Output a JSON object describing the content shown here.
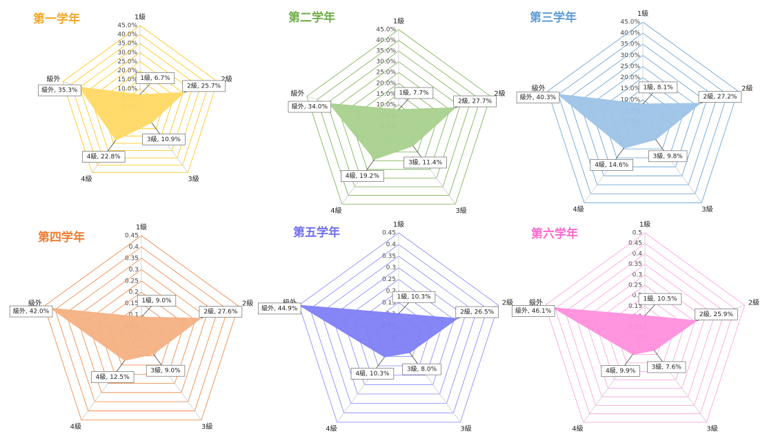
{
  "chart_data": [
    {
      "type": "radar",
      "title": "第一学年",
      "title_color": "#f5a623",
      "color": "#ffc000",
      "fill_color": "#ffd966",
      "categories": [
        "1級",
        "2級",
        "3級",
        "4級",
        "級外"
      ],
      "values": [
        6.7,
        25.7,
        10.9,
        22.8,
        35.3
      ],
      "value_labels": [
        "1級, 6.7%",
        "2級, 25.7%",
        "3級, 10.9%",
        "4級, 22.8%",
        "級外, 35.3%"
      ],
      "rlim": [
        0,
        45
      ],
      "rticks": [
        {
          "value": 0,
          "label": "0.0%"
        },
        {
          "value": 5,
          "label": "5.0%"
        },
        {
          "value": 10,
          "label": "10.0%"
        },
        {
          "value": 15,
          "label": "15.0%"
        },
        {
          "value": 20,
          "label": "20.0%"
        },
        {
          "value": 25,
          "label": "25.0%"
        },
        {
          "value": 30,
          "label": "30.0%"
        },
        {
          "value": 35,
          "label": "35.0%"
        },
        {
          "value": 40,
          "label": "40.0%"
        },
        {
          "value": 45,
          "label": "45.0%"
        }
      ]
    },
    {
      "type": "radar",
      "title": "第二学年",
      "title_color": "#70ad47",
      "color": "#70ad47",
      "fill_color": "#a9d18e",
      "categories": [
        "1級",
        "2級",
        "3級",
        "4級",
        "級外"
      ],
      "values": [
        7.7,
        27.7,
        11.4,
        19.2,
        34.0
      ],
      "value_labels": [
        "1級, 7.7%",
        "2級, 27.7%",
        "3級, 11.4%",
        "4級, 19.2%",
        "級外, 34.0%"
      ],
      "rlim": [
        0,
        45
      ],
      "rticks": [
        {
          "value": 0,
          "label": "0.0%"
        },
        {
          "value": 5,
          "label": "5.0%"
        },
        {
          "value": 10,
          "label": "10.0%"
        },
        {
          "value": 15,
          "label": "15.0%"
        },
        {
          "value": 20,
          "label": "20.0%"
        },
        {
          "value": 25,
          "label": "25.0%"
        },
        {
          "value": 30,
          "label": "30.0%"
        },
        {
          "value": 35,
          "label": "35.0%"
        },
        {
          "value": 40,
          "label": "40.0%"
        },
        {
          "value": 45,
          "label": "45.0%"
        }
      ]
    },
    {
      "type": "radar",
      "title": "第三学年",
      "title_color": "#5b9bd5",
      "color": "#5b9bd5",
      "fill_color": "#9dc3e6",
      "categories": [
        "1級",
        "2級",
        "3級",
        "4級",
        "級外"
      ],
      "values": [
        8.1,
        27.2,
        9.8,
        14.6,
        40.3
      ],
      "value_labels": [
        "1級, 8.1%",
        "2級, 27.2%",
        "3級, 9.8%",
        "4級, 14.6%",
        "級外, 40.3%"
      ],
      "rlim": [
        0,
        45
      ],
      "rticks": [
        {
          "value": 0,
          "label": "0.0%"
        },
        {
          "value": 5,
          "label": "5.0%"
        },
        {
          "value": 10,
          "label": "10.0%"
        },
        {
          "value": 15,
          "label": "15.0%"
        },
        {
          "value": 20,
          "label": "20.0%"
        },
        {
          "value": 25,
          "label": "25.0%"
        },
        {
          "value": 30,
          "label": "30.0%"
        },
        {
          "value": 35,
          "label": "35.0%"
        },
        {
          "value": 40,
          "label": "40.0%"
        },
        {
          "value": 45,
          "label": "45.0%"
        }
      ]
    },
    {
      "type": "radar",
      "title": "第四学年",
      "title_color": "#ed7d31",
      "color": "#ed7d31",
      "fill_color": "#f4b183",
      "categories": [
        "1級",
        "2級",
        "3級",
        "4級",
        "級外"
      ],
      "values": [
        0.09,
        0.276,
        0.09,
        0.125,
        0.42
      ],
      "value_labels": [
        "1級, 9.0%",
        "2級, 27.6%",
        "3級, 9.0%",
        "4級, 12.5%",
        "級外, 42.0%"
      ],
      "rlim": [
        0,
        0.45
      ],
      "rticks": [
        0,
        0.05,
        0.1,
        0.15,
        0.2,
        0.25,
        0.3,
        0.35,
        0.4,
        0.45
      ]
    },
    {
      "type": "radar",
      "title": "第五学年",
      "title_color": "#6f6ff2",
      "color": "#8080ff",
      "fill_color": "#7f7ff7",
      "categories": [
        "1級",
        "2級",
        "3級",
        "4級",
        "級外"
      ],
      "values": [
        0.103,
        0.265,
        0.08,
        0.103,
        0.449
      ],
      "value_labels": [
        "1級, 10.3%",
        "2級, 26.5%",
        "3級, 8.0%",
        "4級, 10.3%",
        "級外, 44.9%"
      ],
      "rlim": [
        0,
        0.45
      ],
      "rticks": [
        0,
        0.05,
        0.1,
        0.15,
        0.2,
        0.25,
        0.3,
        0.35,
        0.4,
        0.45
      ]
    },
    {
      "type": "radar",
      "title": "第六学年",
      "title_color": "#ff66cc",
      "color": "#ff99dd",
      "fill_color": "#ff8fdc",
      "categories": [
        "1級",
        "2級",
        "3級",
        "4級",
        "級外"
      ],
      "values": [
        0.105,
        0.259,
        0.076,
        0.099,
        0.461
      ],
      "value_labels": [
        "1級, 10.5%",
        "2級, 25.9%",
        "3級, 7.6%",
        "4級, 9.9%",
        "級外, 46.1%"
      ],
      "rlim": [
        0,
        0.5
      ],
      "rticks": [
        0,
        0.05,
        0.1,
        0.15,
        0.2,
        0.25,
        0.3,
        0.35,
        0.4,
        0.45,
        0.5
      ]
    }
  ]
}
